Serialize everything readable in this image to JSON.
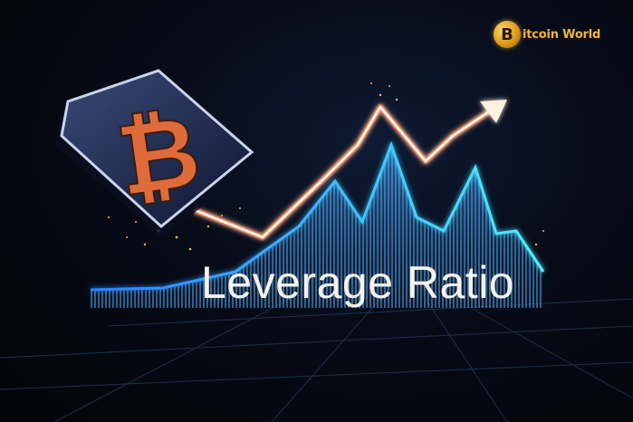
{
  "image": {
    "headline": "Leverage Ratio",
    "logo": {
      "coin_glyph": "B",
      "text": "itcoin World",
      "color": "#f2b53a"
    },
    "colors": {
      "background": "#05070d",
      "trend_line": "#fff1e0",
      "trend_glow": "#ff7a2e",
      "bars": "#3a8fd6",
      "bars_highlight": "#39e1ff",
      "token_symbol": "#e06b3a"
    },
    "icons": [
      "bitcoin-token-icon",
      "rising-arrow-icon",
      "sparks-icon"
    ]
  }
}
